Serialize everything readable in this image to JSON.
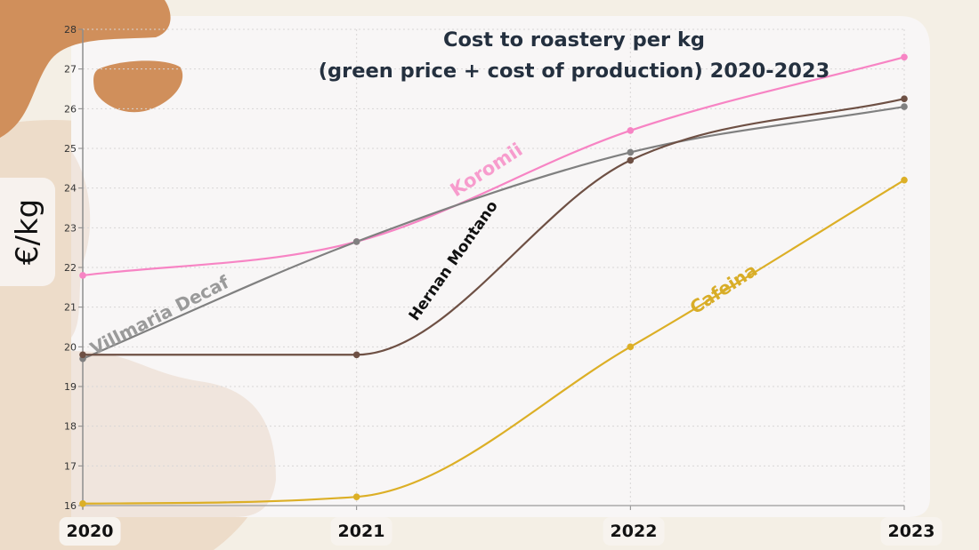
{
  "chart_data": {
    "type": "line",
    "title": "Cost to roastery per kg",
    "subtitle": "(green price + cost of production) 2020-2023",
    "xlabel": "",
    "ylabel": "€/kg",
    "x": [
      "2020",
      "2021",
      "2022",
      "2023"
    ],
    "ylim": [
      16,
      28
    ],
    "yticks": [
      "16",
      "17",
      "18",
      "19",
      "20",
      "21",
      "22",
      "23",
      "24",
      "25",
      "26",
      "27",
      "28"
    ],
    "grid": true,
    "legend": "inline labels on lines",
    "series": [
      {
        "name": "Koromii",
        "color": "#f784c4",
        "values": [
          21.8,
          22.65,
          25.45,
          27.3
        ]
      },
      {
        "name": "Villmaria Decaf",
        "color": "#808080",
        "values": [
          19.7,
          22.65,
          24.9,
          26.05
        ]
      },
      {
        "name": "Hernan Montano",
        "color": "#6e5044",
        "values": [
          19.8,
          19.8,
          24.7,
          26.25
        ]
      },
      {
        "name": "Cafeina",
        "color": "#dcaf26",
        "values": [
          16.05,
          16.22,
          20.0,
          24.2
        ]
      }
    ]
  },
  "labels": {
    "koromii": "Koromii",
    "villmaria": "Villmaria Decaf",
    "hernan": "Hernan Montano",
    "cafeina": "Cafeina"
  },
  "colors": {
    "background": "#f4efe5",
    "panel": "#f8f6f6",
    "blob_dark": "#d08f5b",
    "blob_light": "#efdfcf",
    "title": "#24303f"
  }
}
